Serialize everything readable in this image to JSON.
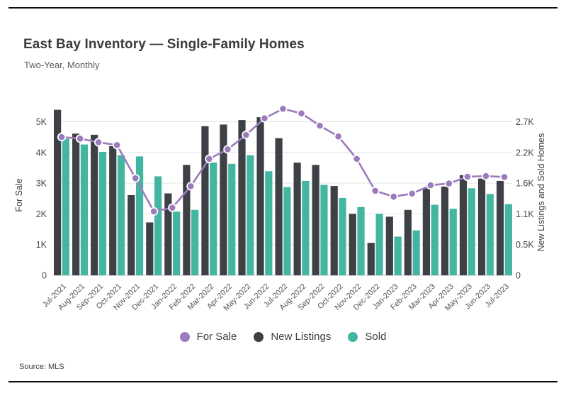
{
  "figure": {
    "title": "East Bay Inventory — Single-Family Homes",
    "subtitle": "Two-Year, Monthly",
    "source": "Source: MLS"
  },
  "legend": [
    {
      "label": "For Sale",
      "color": "#9c7bbc"
    },
    {
      "label": "New Listings",
      "color": "#3d4045"
    },
    {
      "label": "Sold",
      "color": "#43b6a2"
    }
  ],
  "chart_data": {
    "type": "combo-bar-line",
    "title": "East Bay Inventory — Single-Family Homes",
    "subtitle": "Two-Year, Monthly",
    "grid": true,
    "legend_position": "bottom",
    "categories": [
      "Jul-2021",
      "Aug-2021",
      "Sep-2021",
      "Oct-2021",
      "Nov-2021",
      "Dec-2021",
      "Jan-2022",
      "Feb-2022",
      "Mar-2022",
      "Apr-2022",
      "May-2022",
      "Jun-2022",
      "Jul-2022",
      "Aug-2022",
      "Sep-2022",
      "Oct-2022",
      "Nov-2022",
      "Dec-2022",
      "Jan-2023",
      "Feb-2023",
      "Mar-2023",
      "Apr-2023",
      "May-2023",
      "Jun-2023",
      "Jul-2023"
    ],
    "series": [
      {
        "name": "For Sale",
        "type": "line",
        "axis": "left",
        "color": "#9c7bbc",
        "values": [
          4500,
          4450,
          4330,
          4240,
          3160,
          2080,
          2200,
          2900,
          3790,
          4100,
          4570,
          5110,
          5420,
          5270,
          4870,
          4520,
          3790,
          2750,
          2560,
          2660,
          2930,
          2990,
          3210,
          3230,
          3200
        ]
      },
      {
        "name": "New Listings",
        "type": "bar",
        "axis": "right",
        "color": "#3d4045",
        "values": [
          2910,
          2490,
          2470,
          2270,
          1410,
          930,
          1440,
          1940,
          2620,
          2650,
          2730,
          2780,
          2410,
          1980,
          1940,
          1570,
          1080,
          570,
          1030,
          1150,
          1530,
          1560,
          1760,
          1700,
          1660
        ]
      },
      {
        "name": "Sold",
        "type": "bar",
        "axis": "right",
        "color": "#43b6a2",
        "values": [
          2400,
          2300,
          2170,
          2110,
          2090,
          1740,
          1120,
          1150,
          1980,
          1960,
          2110,
          1830,
          1550,
          1660,
          1590,
          1360,
          1200,
          1080,
          680,
          790,
          1240,
          1170,
          1530,
          1430,
          1250
        ]
      }
    ],
    "left_axis": {
      "label": "For Sale",
      "ticks": [
        "0",
        "1K",
        "2K",
        "3K",
        "4K",
        "5K"
      ],
      "tick_values": [
        0,
        1000,
        2000,
        3000,
        4000,
        5000
      ],
      "range": [
        0,
        5550
      ]
    },
    "right_axis": {
      "label": "New Listings and Sold Homes",
      "ticks": [
        "0",
        "0.5K",
        "1.1K",
        "1.6K",
        "2.2K",
        "2.7K"
      ],
      "tick_values": [
        0,
        540,
        1080,
        1620,
        2160,
        2700
      ],
      "range": [
        0,
        2997
      ]
    }
  }
}
